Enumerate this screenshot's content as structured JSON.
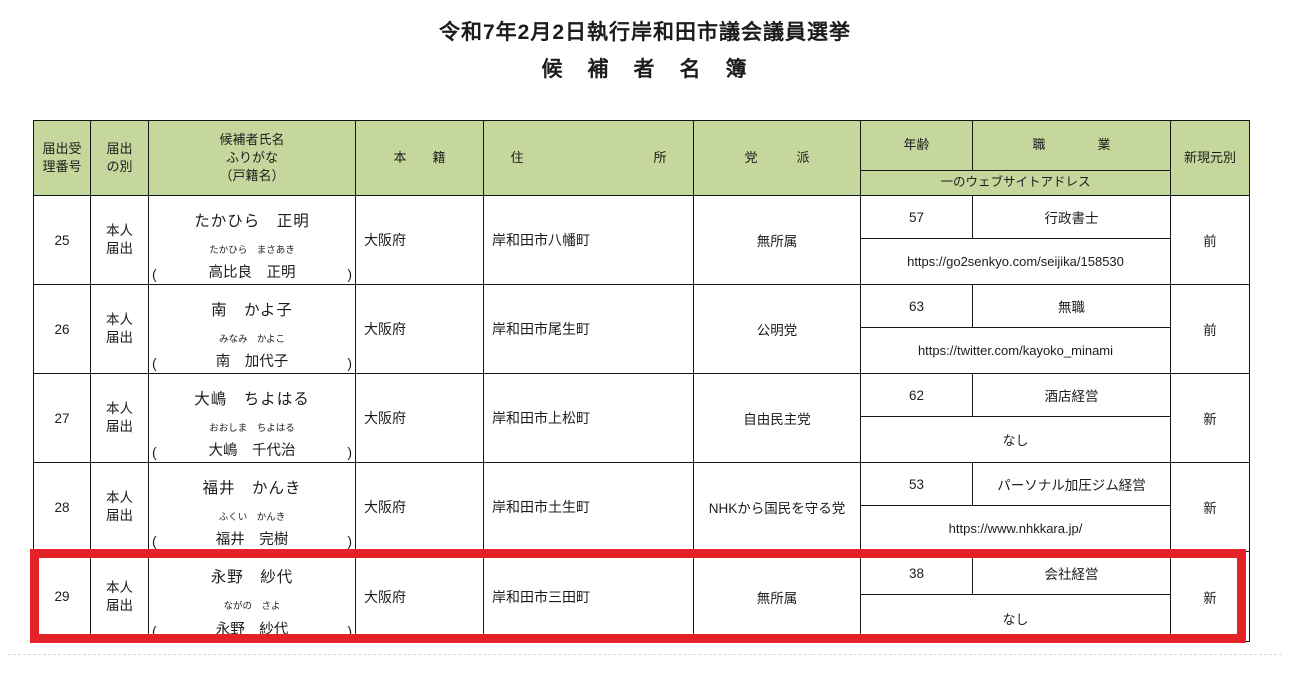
{
  "doc": {
    "title_line1": "令和7年2月2日執行岸和田市議会議員選挙",
    "title_line2": "候　補　者　名　簿"
  },
  "colors": {
    "header_green": "#c5d79d",
    "highlight_red": "#e62229"
  },
  "table": {
    "paren_open": "(",
    "paren_close": ")",
    "headers": {
      "no": "届出受\n理番号",
      "type": "届出\nの別",
      "name": "候補者氏名\nふりがな\n（戸籍名）",
      "domicile": "本　　籍",
      "address": "住　　　　　　　　　　所",
      "party": "党　　　派",
      "age": "年齢",
      "occupation": "職　　　　業",
      "website": "一のウェブサイトアドレス",
      "status": "新現元別"
    },
    "rows": [
      {
        "no": "25",
        "type": "本人\n届出",
        "name": "たかひら　正明",
        "kana": "たかひら　まさあき",
        "legal_name": "高比良　正明",
        "domicile": "大阪府",
        "address": "岸和田市八幡町",
        "party": "無所属",
        "age": "57",
        "occupation": "行政書士",
        "website": "https://go2senkyo.com/seijika/158530",
        "status": "前"
      },
      {
        "no": "26",
        "type": "本人\n届出",
        "name": "南　かよ子",
        "kana": "みなみ　かよこ",
        "legal_name": "南　加代子",
        "domicile": "大阪府",
        "address": "岸和田市尾生町",
        "party": "公明党",
        "age": "63",
        "occupation": "無職",
        "website": "https://twitter.com/kayoko_minami",
        "status": "前"
      },
      {
        "no": "27",
        "type": "本人\n届出",
        "name": "大嶋　ちよはる",
        "kana": "おおしま　ちよはる",
        "legal_name": "大嶋　千代治",
        "domicile": "大阪府",
        "address": "岸和田市上松町",
        "party": "自由民主党",
        "age": "62",
        "occupation": "酒店経営",
        "website": "なし",
        "status": "新"
      },
      {
        "no": "28",
        "type": "本人\n届出",
        "name": "福井　かんき",
        "kana": "ふくい　かんき",
        "legal_name": "福井　完樹",
        "domicile": "大阪府",
        "address": "岸和田市土生町",
        "party": "NHKから国民を守る党",
        "age": "53",
        "occupation": "パーソナル加圧ジム経営",
        "website": "https://www.nhkkara.jp/",
        "status": "新"
      },
      {
        "no": "29",
        "type": "本人\n届出",
        "name": "永野　紗代",
        "kana": "ながの　さよ",
        "legal_name": "永野　紗代",
        "domicile": "大阪府",
        "address": "岸和田市三田町",
        "party": "無所属",
        "age": "38",
        "occupation": "会社経営",
        "website": "なし",
        "status": "新"
      }
    ]
  }
}
